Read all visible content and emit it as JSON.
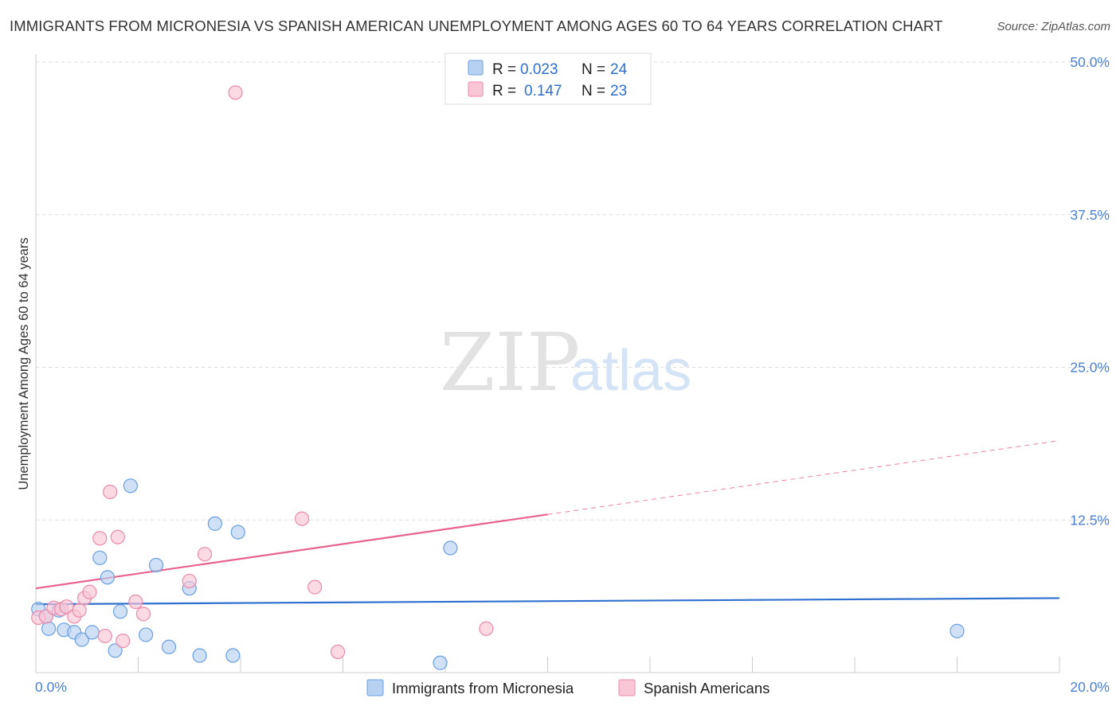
{
  "title": "IMMIGRANTS FROM MICRONESIA VS SPANISH AMERICAN UNEMPLOYMENT AMONG AGES 60 TO 64 YEARS CORRELATION CHART",
  "source": "Source: ZipAtlas.com",
  "watermark": {
    "zip": "ZIP",
    "atlas": "atlas"
  },
  "legend_top": [
    {
      "r_label": "R =",
      "r_value": "0.023",
      "n_label": "N =",
      "n_value": "24",
      "color": "#a9c8f0"
    },
    {
      "r_label": "R =",
      "r_value": "0.147",
      "n_label": "N =",
      "n_value": "23",
      "color": "#f7b9cd"
    }
  ],
  "chart_data": {
    "type": "scatter",
    "ylabel": "Unemployment Among Ages 60 to 64 years",
    "xlim": [
      0,
      20
    ],
    "ylim": [
      0,
      50
    ],
    "x_tick_labels": [
      "0.0%",
      "20.0%"
    ],
    "y_ticks": [
      12.5,
      25.0,
      37.5,
      50.0
    ],
    "y_tick_labels": [
      "12.5%",
      "25.0%",
      "37.5%",
      "50.0%"
    ],
    "grid": true,
    "legend_position": "bottom",
    "series": [
      {
        "name": "Immigrants from Micronesia",
        "color": "#6a9fe0",
        "fill": "#b7d1f3",
        "trend_color": "#2e6fcf",
        "trend": {
          "x0": 0,
          "y0": 5.6,
          "x1": 20,
          "y1": 6.1,
          "solid_to": 20
        },
        "points": [
          [
            0.05,
            5.2
          ],
          [
            0.2,
            4.6
          ],
          [
            0.25,
            3.6
          ],
          [
            0.45,
            5.1
          ],
          [
            0.55,
            3.5
          ],
          [
            0.75,
            3.3
          ],
          [
            0.9,
            2.7
          ],
          [
            1.1,
            3.3
          ],
          [
            1.25,
            9.4
          ],
          [
            1.4,
            7.8
          ],
          [
            1.55,
            1.8
          ],
          [
            1.65,
            5.0
          ],
          [
            1.85,
            15.3
          ],
          [
            2.15,
            3.1
          ],
          [
            2.35,
            8.8
          ],
          [
            2.6,
            2.1
          ],
          [
            3.0,
            6.9
          ],
          [
            3.2,
            1.4
          ],
          [
            3.5,
            12.2
          ],
          [
            3.85,
            1.4
          ],
          [
            3.95,
            11.5
          ],
          [
            7.9,
            0.8
          ],
          [
            8.1,
            10.2
          ],
          [
            18.0,
            3.4
          ]
        ]
      },
      {
        "name": "Spanish Americans",
        "color": "#ea8aaa",
        "fill": "#f9c6d6",
        "trend_color": "#e8628d",
        "trend": {
          "x0": 0,
          "y0": 6.9,
          "x1": 20,
          "y1": 19.0,
          "solid_to": 10
        },
        "points": [
          [
            0.05,
            4.5
          ],
          [
            0.2,
            4.6
          ],
          [
            0.35,
            5.3
          ],
          [
            0.5,
            5.2
          ],
          [
            0.6,
            5.4
          ],
          [
            0.75,
            4.6
          ],
          [
            0.85,
            5.1
          ],
          [
            0.95,
            6.1
          ],
          [
            1.05,
            6.6
          ],
          [
            1.25,
            11.0
          ],
          [
            1.35,
            3.0
          ],
          [
            1.45,
            14.8
          ],
          [
            1.6,
            11.1
          ],
          [
            1.7,
            2.6
          ],
          [
            1.95,
            5.8
          ],
          [
            2.1,
            4.8
          ],
          [
            3.0,
            7.5
          ],
          [
            3.3,
            9.7
          ],
          [
            3.9,
            47.5
          ],
          [
            5.2,
            12.6
          ],
          [
            5.45,
            7.0
          ],
          [
            5.9,
            1.7
          ],
          [
            8.8,
            3.6
          ]
        ]
      }
    ]
  }
}
